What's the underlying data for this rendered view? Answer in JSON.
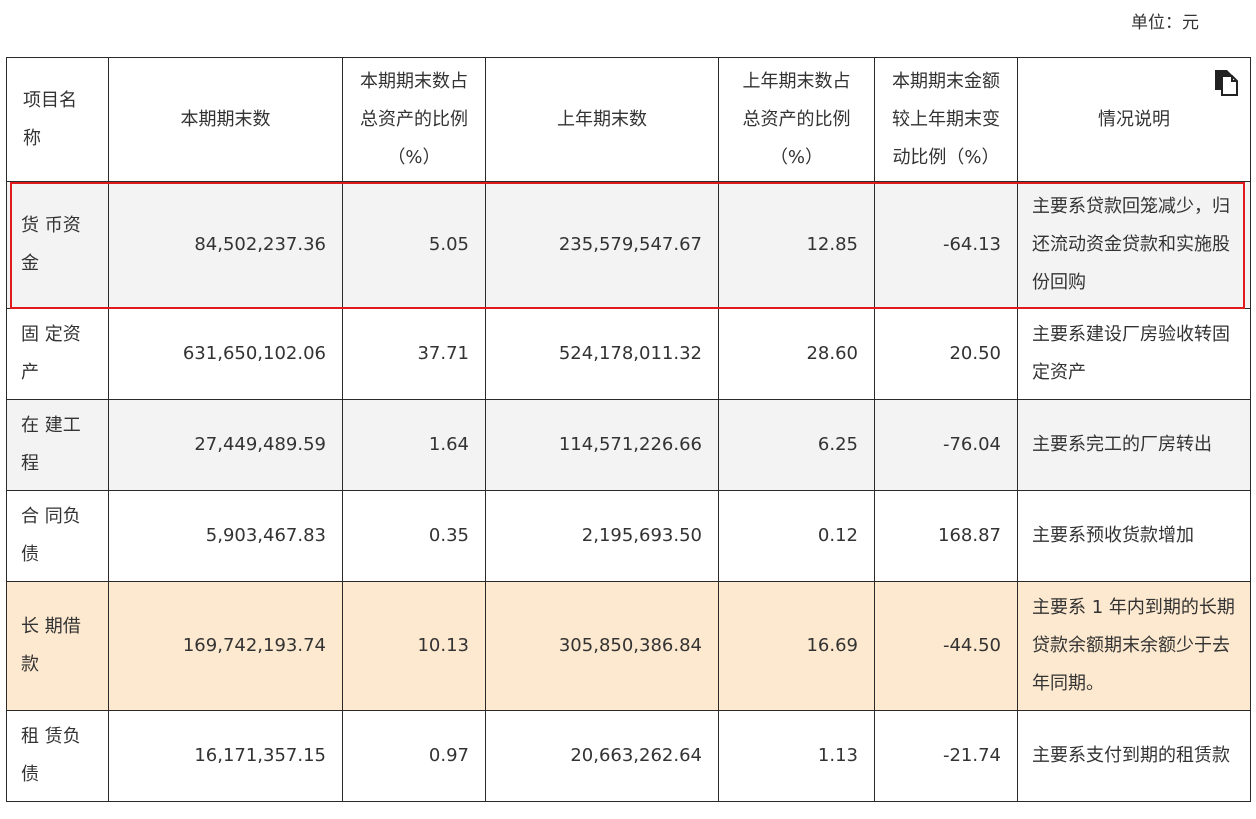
{
  "unit_label": "单位：元",
  "headers": [
    "项目名称",
    "本期期末数",
    "本期期末数占总资产的比例（%）",
    "上年期末数",
    "上年期末数占总资产的比例（%）",
    "本期期末金额较上年期末变动比例（%）",
    "情况说明"
  ],
  "rows": [
    {
      "name": "货 币资金",
      "current": "84,502,237.36",
      "current_ratio": "5.05",
      "prior": "235,579,547.67",
      "prior_ratio": "12.85",
      "change": "-64.13",
      "note": "主要系贷款回笼减少，归还流动资金贷款和实施股份回购"
    },
    {
      "name": "固 定资产",
      "current": "631,650,102.06",
      "current_ratio": "37.71",
      "prior": "524,178,011.32",
      "prior_ratio": "28.60",
      "change": "20.50",
      "note": "主要系建设厂房验收转固定资产"
    },
    {
      "name": "在 建工程",
      "current": "27,449,489.59",
      "current_ratio": "1.64",
      "prior": "114,571,226.66",
      "prior_ratio": "6.25",
      "change": "-76.04",
      "note": "主要系完工的厂房转出"
    },
    {
      "name": "合 同负债",
      "current": "5,903,467.83",
      "current_ratio": "0.35",
      "prior": "2,195,693.50",
      "prior_ratio": "0.12",
      "change": "168.87",
      "note": "主要系预收货款增加"
    },
    {
      "name": "长 期借款",
      "current": "169,742,193.74",
      "current_ratio": "10.13",
      "prior": "305,850,386.84",
      "prior_ratio": "16.69",
      "change": "-44.50",
      "note": "主要系 1 年内到期的长期贷款余额期末余额少于去年同期。"
    },
    {
      "name": "租 赁负债",
      "current": "16,171,357.15",
      "current_ratio": "0.97",
      "prior": "20,663,262.64",
      "prior_ratio": "1.13",
      "change": "-21.74",
      "note": "主要系支付到期的租赁款"
    }
  ],
  "icons": {
    "copy": "copy-icon"
  },
  "colors": {
    "highlight_border": "#e0191c",
    "highlight_row_bg": "#fde9cf",
    "alt_row_bg": "#f3f3f3"
  }
}
